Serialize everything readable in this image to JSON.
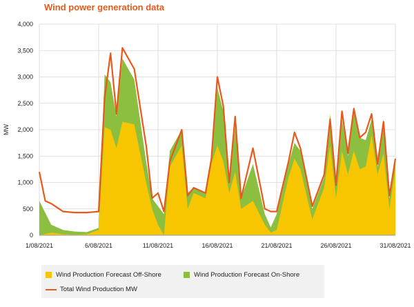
{
  "title": "Wind power generation data",
  "colors": {
    "offshore": "#f7c600",
    "onshore": "#8cbf3f",
    "total": "#e8591a",
    "grid": "#d6d6d6",
    "title": "#e8591a"
  },
  "legend": {
    "offshore": "Wind Production Forecast Off-Shore",
    "onshore": "Wind Production Forecast On-Shore",
    "total": "Total Wind Production MW"
  },
  "chart_data": {
    "type": "area",
    "title": "Wind power generation data",
    "xlabel": "",
    "ylabel": "MW",
    "ylim": [
      0,
      4000
    ],
    "yticks": [
      0,
      500,
      1000,
      1500,
      2000,
      2500,
      3000,
      3500,
      4000
    ],
    "ytick_labels": [
      "0",
      "500",
      "1,000",
      "1,500",
      "2,000",
      "2,500",
      "3,000",
      "3,500",
      "4,000"
    ],
    "x_range": [
      "1/08/2021",
      "31/08/2021"
    ],
    "xtick_labels": [
      "1/08/2021",
      "6/08/2021",
      "11/08/2021",
      "16/08/2021",
      "21/08/2021",
      "26/08/2021",
      "31/08/2021"
    ],
    "grid": true,
    "legend_position": "bottom",
    "series": [
      {
        "name": "Wind Production Forecast Off-Shore",
        "kind": "area",
        "points": [
          [
            "1/08/2021",
            0
          ],
          [
            "2/08/2021",
            50
          ],
          [
            "3/08/2021",
            20
          ],
          [
            "4/08/2021",
            10
          ],
          [
            "5/08/2021",
            20
          ],
          [
            "6/08/2021",
            100
          ],
          [
            "6/08/2021 12:00",
            2050
          ],
          [
            "7/08/2021",
            2000
          ],
          [
            "7/08/2021 12:00",
            1650
          ],
          [
            "8/08/2021",
            2150
          ],
          [
            "9/08/2021",
            2100
          ],
          [
            "10/08/2021",
            1000
          ],
          [
            "10/08/2021 12:00",
            500
          ],
          [
            "11/08/2021",
            200
          ],
          [
            "11/08/2021 12:00",
            0
          ],
          [
            "12/08/2021",
            1300
          ],
          [
            "13/08/2021",
            1700
          ],
          [
            "13/08/2021 12:00",
            500
          ],
          [
            "14/08/2021",
            800
          ],
          [
            "15/08/2021",
            700
          ],
          [
            "15/08/2021 12:00",
            1350
          ],
          [
            "16/08/2021",
            1700
          ],
          [
            "16/08/2021 12:00",
            1400
          ],
          [
            "17/08/2021",
            800
          ],
          [
            "17/08/2021 12:00",
            1200
          ],
          [
            "18/08/2021",
            500
          ],
          [
            "19/08/2021",
            650
          ],
          [
            "20/08/2021",
            200
          ],
          [
            "20/08/2021 12:00",
            50
          ],
          [
            "21/08/2021",
            100
          ],
          [
            "22/08/2021",
            1100
          ],
          [
            "22/08/2021 12:00",
            1450
          ],
          [
            "23/08/2021",
            1250
          ],
          [
            "24/08/2021",
            300
          ],
          [
            "25/08/2021",
            900
          ],
          [
            "25/08/2021 12:00",
            1700
          ],
          [
            "26/08/2021",
            700
          ],
          [
            "26/08/2021 12:00",
            1600
          ],
          [
            "27/08/2021",
            1150
          ],
          [
            "27/08/2021 12:00",
            1600
          ],
          [
            "28/08/2021",
            1250
          ],
          [
            "28/08/2021 12:00",
            1300
          ],
          [
            "29/08/2021",
            1900
          ],
          [
            "29/08/2021 12:00",
            1150
          ],
          [
            "30/08/2021",
            1550
          ],
          [
            "30/08/2021 12:00",
            500
          ],
          [
            "31/08/2021",
            1250
          ]
        ]
      },
      {
        "name": "Wind Production Forecast On-Shore",
        "kind": "stacked-area",
        "points": [
          [
            "1/08/2021",
            650
          ],
          [
            "2/08/2021",
            150
          ],
          [
            "3/08/2021",
            80
          ],
          [
            "4/08/2021",
            60
          ],
          [
            "5/08/2021",
            40
          ],
          [
            "6/08/2021",
            40
          ],
          [
            "6/08/2021 12:00",
            1000
          ],
          [
            "7/08/2021",
            900
          ],
          [
            "7/08/2021 12:00",
            600
          ],
          [
            "8/08/2021",
            1200
          ],
          [
            "9/08/2021",
            850
          ],
          [
            "10/08/2021",
            400
          ],
          [
            "10/08/2021 12:00",
            200
          ],
          [
            "11/08/2021",
            350
          ],
          [
            "11/08/2021 12:00",
            400
          ],
          [
            "12/08/2021",
            300
          ],
          [
            "13/08/2021",
            300
          ],
          [
            "13/08/2021 12:00",
            300
          ],
          [
            "14/08/2021",
            100
          ],
          [
            "15/08/2021",
            100
          ],
          [
            "15/08/2021 12:00",
            100
          ],
          [
            "16/08/2021",
            1100
          ],
          [
            "16/08/2021 12:00",
            950
          ],
          [
            "17/08/2021",
            200
          ],
          [
            "17/08/2021 12:00",
            850
          ],
          [
            "18/08/2021",
            200
          ],
          [
            "19/08/2021",
            700
          ],
          [
            "20/08/2021",
            200
          ],
          [
            "20/08/2021 12:00",
            100
          ],
          [
            "21/08/2021",
            300
          ],
          [
            "22/08/2021",
            250
          ],
          [
            "22/08/2021 12:00",
            300
          ],
          [
            "23/08/2021",
            350
          ],
          [
            "24/08/2021",
            200
          ],
          [
            "25/08/2021",
            200
          ],
          [
            "25/08/2021 12:00",
            600
          ],
          [
            "26/08/2021",
            300
          ],
          [
            "26/08/2021 12:00",
            600
          ],
          [
            "27/08/2021",
            350
          ],
          [
            "27/08/2021 12:00",
            750
          ],
          [
            "28/08/2021",
            600
          ],
          [
            "28/08/2021 12:00",
            500
          ],
          [
            "29/08/2021",
            300
          ],
          [
            "29/08/2021 12:00",
            150
          ],
          [
            "30/08/2021",
            650
          ],
          [
            "30/08/2021 12:00",
            200
          ],
          [
            "31/08/2021",
            200
          ]
        ]
      },
      {
        "name": "Total Wind Production MW",
        "kind": "line",
        "points": [
          [
            "1/08/2021",
            1200
          ],
          [
            "1/08/2021 12:00",
            650
          ],
          [
            "2/08/2021",
            600
          ],
          [
            "3/08/2021",
            450
          ],
          [
            "4/08/2021",
            430
          ],
          [
            "5/08/2021",
            430
          ],
          [
            "6/08/2021",
            450
          ],
          [
            "6/08/2021 12:00",
            2600
          ],
          [
            "7/08/2021",
            3450
          ],
          [
            "7/08/2021 12:00",
            2300
          ],
          [
            "8/08/2021",
            3550
          ],
          [
            "9/08/2021",
            3150
          ],
          [
            "10/08/2021",
            1700
          ],
          [
            "10/08/2021 12:00",
            700
          ],
          [
            "11/08/2021",
            800
          ],
          [
            "11/08/2021 12:00",
            450
          ],
          [
            "12/08/2021",
            1400
          ],
          [
            "13/08/2021",
            2000
          ],
          [
            "13/08/2021 12:00",
            750
          ],
          [
            "14/08/2021",
            900
          ],
          [
            "15/08/2021",
            800
          ],
          [
            "15/08/2021 12:00",
            1450
          ],
          [
            "16/08/2021",
            3000
          ],
          [
            "16/08/2021 12:00",
            2450
          ],
          [
            "17/08/2021",
            1000
          ],
          [
            "17/08/2021 12:00",
            2250
          ],
          [
            "18/08/2021",
            700
          ],
          [
            "19/08/2021",
            1650
          ],
          [
            "20/08/2021",
            500
          ],
          [
            "20/08/2021 12:00",
            450
          ],
          [
            "21/08/2021",
            450
          ],
          [
            "22/08/2021",
            1400
          ],
          [
            "22/08/2021 12:00",
            1950
          ],
          [
            "23/08/2021",
            1650
          ],
          [
            "24/08/2021",
            550
          ],
          [
            "25/08/2021",
            1150
          ],
          [
            "25/08/2021 12:00",
            2200
          ],
          [
            "26/08/2021",
            950
          ],
          [
            "26/08/2021 12:00",
            2350
          ],
          [
            "27/08/2021",
            1550
          ],
          [
            "27/08/2021 12:00",
            2400
          ],
          [
            "28/08/2021",
            1850
          ],
          [
            "28/08/2021 12:00",
            1950
          ],
          [
            "29/08/2021",
            2300
          ],
          [
            "29/08/2021 12:00",
            1350
          ],
          [
            "30/08/2021",
            2150
          ],
          [
            "30/08/2021 12:00",
            750
          ],
          [
            "31/08/2021",
            1450
          ]
        ]
      }
    ]
  }
}
